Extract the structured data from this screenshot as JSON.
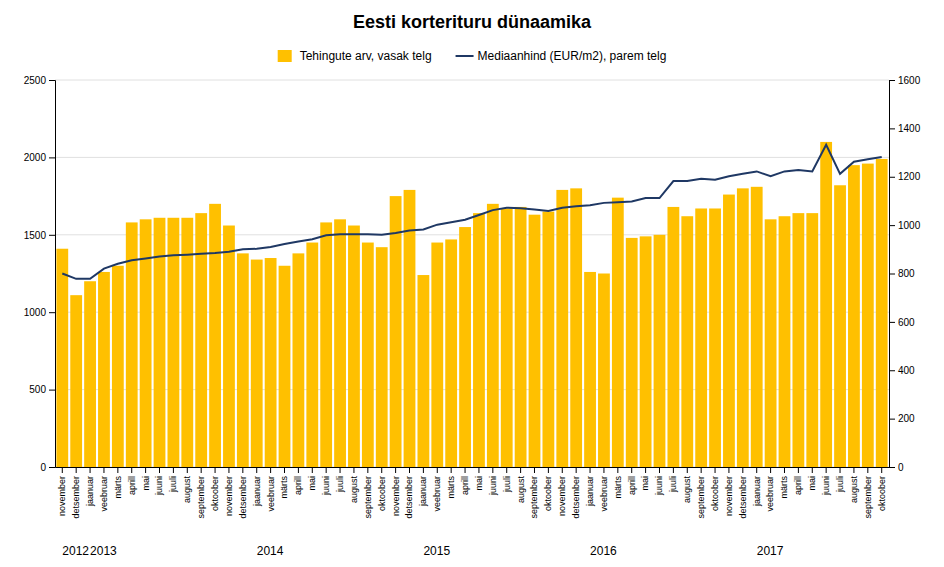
{
  "chart_data": {
    "type": "bar",
    "title": "Eesti korterituru dünaamika",
    "categories": [
      "november",
      "detsember",
      "jaanuar",
      "veebruar",
      "märts",
      "aprill",
      "mai",
      "juuni",
      "juuli",
      "august",
      "september",
      "oktoober",
      "november",
      "detsember",
      "jaanuar",
      "veebruar",
      "märts",
      "aprill",
      "mai",
      "juuni",
      "juuli",
      "august",
      "september",
      "oktoober",
      "november",
      "detsember",
      "jaanuar",
      "veebruar",
      "märts",
      "aprill",
      "mai",
      "juuni",
      "juuli",
      "august",
      "september",
      "oktoober",
      "november",
      "detsember",
      "jaanuar",
      "veebruar",
      "märts",
      "aprill",
      "mai",
      "juuni",
      "juuli",
      "august",
      "september",
      "oktoober",
      "november",
      "detsember",
      "jaanuar",
      "veebruar",
      "märts",
      "aprill",
      "mai",
      "juuni",
      "juuli",
      "august",
      "september",
      "oktoober"
    ],
    "series": [
      {
        "name": "Tehingute arv, vasak telg",
        "type": "bar",
        "color": "#FFC000",
        "values": [
          1410,
          1110,
          1200,
          1260,
          1300,
          1580,
          1600,
          1610,
          1610,
          1610,
          1640,
          1700,
          1560,
          1380,
          1340,
          1350,
          1300,
          1380,
          1450,
          1580,
          1600,
          1560,
          1450,
          1420,
          1750,
          1790,
          1240,
          1450,
          1470,
          1550,
          1640,
          1700,
          1670,
          1680,
          1630,
          1650,
          1790,
          1800,
          1260,
          1250,
          1740,
          1480,
          1490,
          1500,
          1680,
          1620,
          1670,
          1670,
          1760,
          1800,
          1810,
          1600,
          1620,
          1640,
          1640,
          2100,
          1820,
          1950,
          1960,
          1990
        ]
      },
      {
        "name": "Mediaanhind (EUR/m2), parem telg",
        "type": "line",
        "color": "#1F3864",
        "axis": "y2",
        "values": [
          800,
          778,
          778,
          820,
          840,
          855,
          862,
          870,
          875,
          878,
          882,
          885,
          890,
          900,
          902,
          910,
          922,
          932,
          942,
          958,
          962,
          962,
          962,
          960,
          967,
          978,
          982,
          1002,
          1012,
          1022,
          1042,
          1062,
          1072,
          1070,
          1065,
          1058,
          1072,
          1078,
          1082,
          1092,
          1095,
          1098,
          1112,
          1112,
          1182,
          1182,
          1192,
          1188,
          1202,
          1212,
          1222,
          1202,
          1222,
          1228,
          1222,
          1332,
          1212,
          1262,
          1272,
          1282
        ]
      }
    ],
    "ylim": [
      0,
      2500
    ],
    "yticks": [
      0,
      500,
      1000,
      1500,
      2000,
      2500
    ],
    "y2lim": [
      0,
      1600
    ],
    "y2ticks": [
      0,
      200,
      400,
      600,
      800,
      1000,
      1200,
      1400,
      1600
    ],
    "grid": true,
    "legend": "top",
    "annotations": [
      {
        "text": "2012",
        "x": 0
      },
      {
        "text": "2013",
        "x": 2
      },
      {
        "text": "2014",
        "x": 14
      },
      {
        "text": "2015",
        "x": 26
      },
      {
        "text": "2016",
        "x": 38
      },
      {
        "text": "2017",
        "x": 50
      }
    ]
  }
}
